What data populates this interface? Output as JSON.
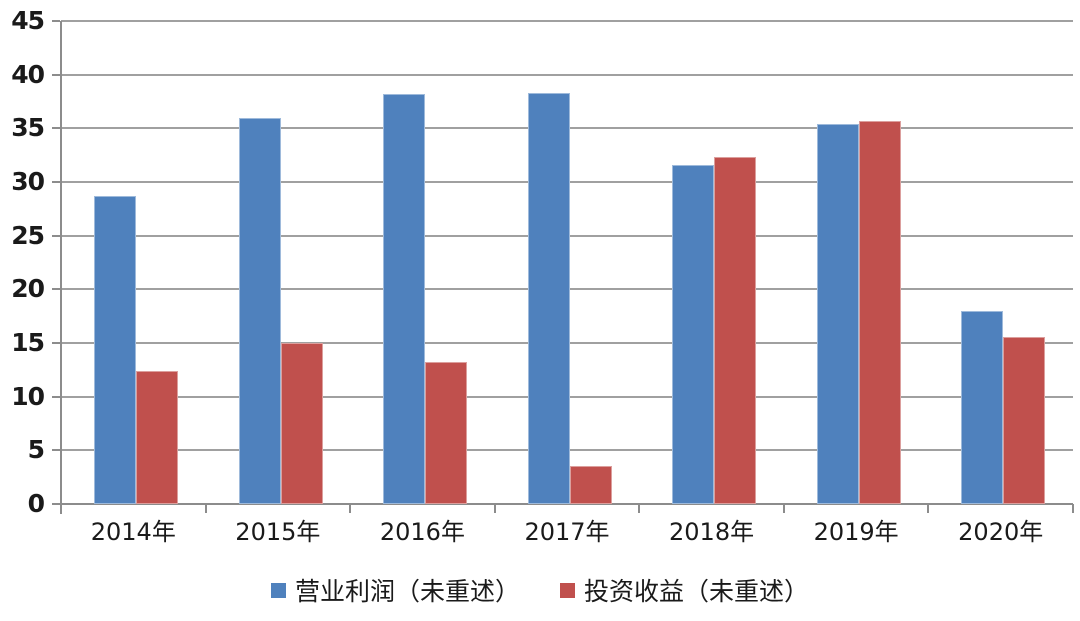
{
  "chart_data": {
    "type": "bar",
    "title": "",
    "xlabel": "",
    "ylabel": "",
    "categories": [
      "2014年",
      "2015年",
      "2016年",
      "2017年",
      "2018年",
      "2019年",
      "2020年"
    ],
    "series": [
      {
        "name": "营业利润（未重述）",
        "color": "#4F81BD",
        "values": [
          28.7,
          36.0,
          38.2,
          38.3,
          31.6,
          35.4,
          18.0
        ]
      },
      {
        "name": "投资收益（未重述）",
        "color": "#C0504D",
        "values": [
          12.4,
          15.0,
          13.2,
          3.5,
          32.3,
          35.7,
          15.6
        ]
      }
    ],
    "ylim": [
      0,
      45
    ],
    "ytick_interval": 5,
    "y_ticks": [
      "0",
      "5",
      "10",
      "15",
      "20",
      "25",
      "30",
      "35",
      "40",
      "45"
    ],
    "grid": "horizontal-only",
    "legend_position": "bottom-center",
    "colors": {
      "gridline": "#a0a0a0",
      "axis": "#8c8c8c",
      "label_text": "#1a1a1a",
      "background": "#ffffff"
    }
  },
  "legend": {
    "items": [
      {
        "label": "营业利润（未重述）",
        "color": "#4F81BD"
      },
      {
        "label": "投资收益（未重述）",
        "color": "#C0504D"
      }
    ]
  }
}
